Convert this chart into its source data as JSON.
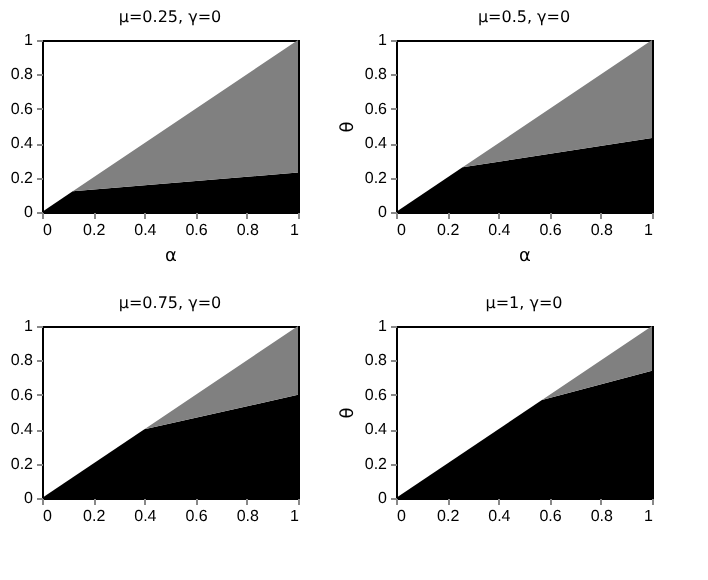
{
  "chart_data": [
    {
      "type": "area",
      "title": "μ=0.25, γ=0",
      "xlabel": "α",
      "x": [
        0,
        0.12,
        1
      ],
      "stacked": true,
      "xlim": [
        0,
        1
      ],
      "ylim": [
        0,
        1
      ],
      "xticks": [
        0,
        0.2,
        0.4,
        0.6,
        0.8,
        1
      ],
      "yticks": [
        0,
        0.2,
        0.4,
        0.6,
        0.8,
        1
      ],
      "series": [
        {
          "color": "#000000",
          "values": [
            0,
            0.12,
            0.23
          ]
        },
        {
          "color": "#808080",
          "values": [
            0,
            0,
            0.77
          ]
        }
      ]
    },
    {
      "type": "area",
      "title": "μ=0.5, γ=0",
      "xlabel": "α",
      "ylabel": "θ",
      "x": [
        0,
        0.26,
        1
      ],
      "stacked": true,
      "xlim": [
        0,
        1
      ],
      "ylim": [
        0,
        1
      ],
      "xticks": [
        0,
        0.2,
        0.4,
        0.6,
        0.8,
        1
      ],
      "yticks": [
        0,
        0.2,
        0.4,
        0.6,
        0.8,
        1
      ],
      "series": [
        {
          "color": "#000000",
          "values": [
            0,
            0.26,
            0.43
          ]
        },
        {
          "color": "#808080",
          "values": [
            0,
            0,
            0.57
          ]
        }
      ]
    },
    {
      "type": "area",
      "title": "μ=0.75, γ=0",
      "x": [
        0,
        0.4,
        1
      ],
      "stacked": true,
      "xlim": [
        0,
        1
      ],
      "ylim": [
        0,
        1
      ],
      "xticks": [
        0,
        0.2,
        0.4,
        0.6,
        0.8,
        1
      ],
      "yticks": [
        0,
        0.2,
        0.4,
        0.6,
        0.8,
        1
      ],
      "series": [
        {
          "color": "#000000",
          "values": [
            0,
            0.4,
            0.6
          ]
        },
        {
          "color": "#808080",
          "values": [
            0,
            0,
            0.4
          ]
        }
      ]
    },
    {
      "type": "area",
      "title": "μ=1, γ=0",
      "ylabel": "θ",
      "x": [
        0,
        0.57,
        1
      ],
      "stacked": true,
      "xlim": [
        0,
        1
      ],
      "ylim": [
        0,
        1
      ],
      "xticks": [
        0,
        0.2,
        0.4,
        0.6,
        0.8,
        1
      ],
      "yticks": [
        0,
        0.2,
        0.4,
        0.6,
        0.8,
        1
      ],
      "series": [
        {
          "color": "#000000",
          "values": [
            0,
            0.57,
            0.74
          ]
        },
        {
          "color": "#808080",
          "values": [
            0,
            0,
            0.26
          ]
        }
      ]
    }
  ]
}
